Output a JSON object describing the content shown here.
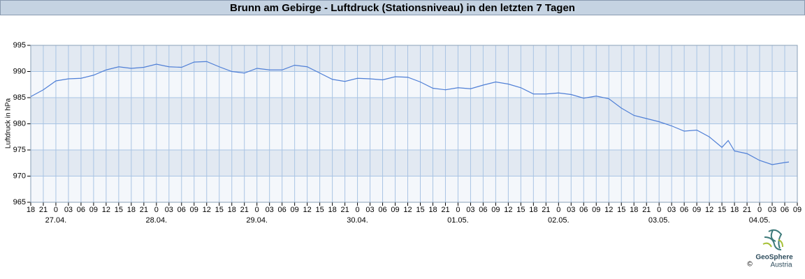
{
  "chart_data": {
    "type": "line",
    "title": "Brunn am Gebirge - Luftdruck (Stationsniveau) in den letzten 7 Tagen",
    "y_label": "Luftdruck in hPa",
    "credit": {
      "symbol": "©",
      "name": "GeoSphere",
      "sub": "Austria"
    },
    "x": [
      0,
      3,
      6,
      9,
      12,
      15,
      18,
      21,
      24,
      27,
      30,
      33,
      36,
      39,
      42,
      45,
      48,
      51,
      54,
      57,
      60,
      63,
      66,
      69,
      72,
      75,
      78,
      81,
      84,
      87,
      90,
      93,
      96,
      99,
      102,
      105,
      108,
      111,
      114,
      117,
      120,
      123,
      126,
      129,
      132,
      135,
      138,
      141,
      144,
      147,
      150,
      153,
      156,
      159,
      162,
      165,
      166.5,
      168,
      171,
      174,
      177,
      180,
      181
    ],
    "series": [
      {
        "name": "Luftdruck",
        "color": "#4f7fd6",
        "values": [
          985.2,
          986.5,
          988.2,
          988.6,
          988.7,
          989.3,
          990.3,
          990.9,
          990.6,
          990.8,
          991.4,
          990.9,
          990.8,
          991.8,
          991.9,
          990.9,
          990.0,
          989.7,
          990.6,
          990.3,
          990.3,
          991.2,
          990.9,
          989.7,
          988.5,
          988.1,
          988.7,
          988.6,
          988.4,
          989.0,
          988.9,
          988.0,
          986.8,
          986.5,
          986.9,
          986.7,
          987.4,
          988.0,
          987.6,
          986.9,
          985.7,
          985.7,
          985.9,
          985.6,
          984.9,
          985.3,
          984.8,
          983.0,
          981.6,
          981.0,
          980.4,
          979.6,
          978.6,
          978.8,
          977.5,
          975.5,
          976.8,
          974.8,
          974.3,
          973.0,
          972.2,
          972.6,
          972.7
        ]
      }
    ],
    "xlim": [
      0,
      183
    ],
    "xticks": [
      {
        "value": 0,
        "label": "18"
      },
      {
        "value": 3,
        "label": "21"
      },
      {
        "value": 6,
        "label": "0"
      },
      {
        "value": 9,
        "label": "03"
      },
      {
        "value": 12,
        "label": "06"
      },
      {
        "value": 15,
        "label": "09"
      },
      {
        "value": 18,
        "label": "12"
      },
      {
        "value": 21,
        "label": "15"
      },
      {
        "value": 24,
        "label": "18"
      },
      {
        "value": 27,
        "label": "21"
      },
      {
        "value": 30,
        "label": "0"
      },
      {
        "value": 33,
        "label": "03"
      },
      {
        "value": 36,
        "label": "06"
      },
      {
        "value": 39,
        "label": "09"
      },
      {
        "value": 42,
        "label": "12"
      },
      {
        "value": 45,
        "label": "15"
      },
      {
        "value": 48,
        "label": "18"
      },
      {
        "value": 51,
        "label": "21"
      },
      {
        "value": 54,
        "label": "0"
      },
      {
        "value": 57,
        "label": "03"
      },
      {
        "value": 60,
        "label": "06"
      },
      {
        "value": 63,
        "label": "09"
      },
      {
        "value": 66,
        "label": "12"
      },
      {
        "value": 69,
        "label": "15"
      },
      {
        "value": 72,
        "label": "18"
      },
      {
        "value": 75,
        "label": "21"
      },
      {
        "value": 78,
        "label": "0"
      },
      {
        "value": 81,
        "label": "03"
      },
      {
        "value": 84,
        "label": "06"
      },
      {
        "value": 87,
        "label": "09"
      },
      {
        "value": 90,
        "label": "12"
      },
      {
        "value": 93,
        "label": "15"
      },
      {
        "value": 96,
        "label": "18"
      },
      {
        "value": 99,
        "label": "21"
      },
      {
        "value": 102,
        "label": "0"
      },
      {
        "value": 105,
        "label": "03"
      },
      {
        "value": 108,
        "label": "06"
      },
      {
        "value": 111,
        "label": "09"
      },
      {
        "value": 114,
        "label": "12"
      },
      {
        "value": 117,
        "label": "15"
      },
      {
        "value": 120,
        "label": "18"
      },
      {
        "value": 123,
        "label": "21"
      },
      {
        "value": 126,
        "label": "0"
      },
      {
        "value": 129,
        "label": "03"
      },
      {
        "value": 132,
        "label": "06"
      },
      {
        "value": 135,
        "label": "09"
      },
      {
        "value": 138,
        "label": "12"
      },
      {
        "value": 141,
        "label": "15"
      },
      {
        "value": 144,
        "label": "18"
      },
      {
        "value": 147,
        "label": "21"
      },
      {
        "value": 150,
        "label": "0"
      },
      {
        "value": 153,
        "label": "03"
      },
      {
        "value": 156,
        "label": "06"
      },
      {
        "value": 159,
        "label": "09"
      },
      {
        "value": 162,
        "label": "12"
      },
      {
        "value": 165,
        "label": "15"
      },
      {
        "value": 168,
        "label": "18"
      },
      {
        "value": 171,
        "label": "21"
      },
      {
        "value": 174,
        "label": "0"
      },
      {
        "value": 177,
        "label": "03"
      },
      {
        "value": 180,
        "label": "06"
      },
      {
        "value": 183,
        "label": "09"
      }
    ],
    "date_ticks": [
      {
        "value": 6,
        "label": "27.04."
      },
      {
        "value": 30,
        "label": "28.04."
      },
      {
        "value": 54,
        "label": "29.04."
      },
      {
        "value": 78,
        "label": "30.04."
      },
      {
        "value": 102,
        "label": "01.05."
      },
      {
        "value": 126,
        "label": "02.05."
      },
      {
        "value": 150,
        "label": "03.05."
      },
      {
        "value": 174,
        "label": "04.05."
      }
    ],
    "ylim": [
      965,
      995
    ],
    "yticks": [
      965,
      970,
      975,
      980,
      985,
      990,
      995
    ],
    "grid": true
  }
}
